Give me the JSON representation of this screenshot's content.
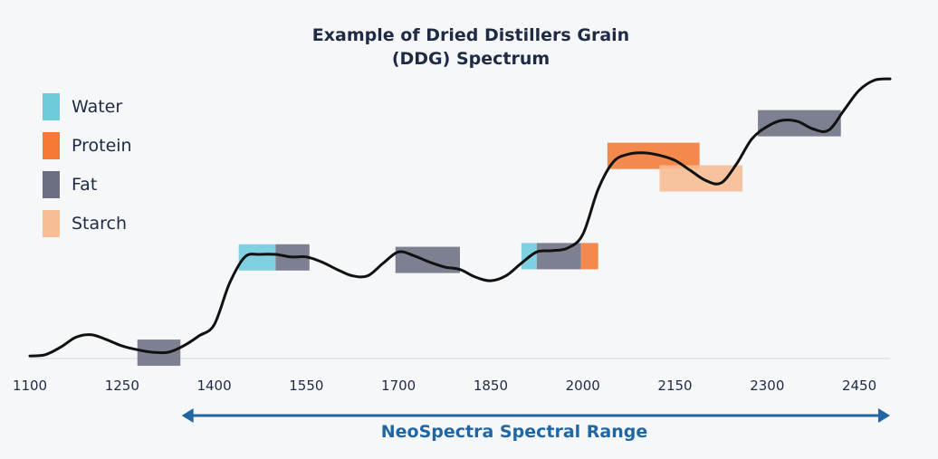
{
  "chart_data": {
    "type": "line",
    "title": "Example of Dried Distillers Grain",
    "subtitle": "(DDG) Spectrum",
    "xlabel": "",
    "ylabel": "",
    "xlim": [
      1100,
      2500
    ],
    "x_ticks": [
      "1100",
      "1250",
      "1400",
      "1550",
      "1700",
      "1850",
      "2000",
      "2150",
      "2300",
      "2450"
    ],
    "legend": [
      {
        "name": "Water",
        "color": "#6ecbdc"
      },
      {
        "name": "Protein",
        "color": "#f47a35"
      },
      {
        "name": "Fat",
        "color": "#6c6f82"
      },
      {
        "name": "Starch",
        "color": "#f7bd95"
      }
    ],
    "series": [
      {
        "name": "DDG spectrum",
        "x": [
          1100,
          1125,
          1150,
          1175,
          1200,
          1225,
          1250,
          1275,
          1300,
          1325,
          1350,
          1375,
          1400,
          1425,
          1450,
          1475,
          1500,
          1525,
          1550,
          1575,
          1600,
          1625,
          1650,
          1675,
          1700,
          1725,
          1750,
          1775,
          1800,
          1825,
          1850,
          1875,
          1900,
          1925,
          1950,
          1975,
          2000,
          2025,
          2050,
          2075,
          2100,
          2125,
          2150,
          2175,
          2200,
          2225,
          2250,
          2275,
          2300,
          2325,
          2350,
          2375,
          2400,
          2425,
          2450,
          2475,
          2500
        ],
        "y": [
          0.02,
          0.03,
          0.09,
          0.17,
          0.19,
          0.15,
          0.1,
          0.07,
          0.05,
          0.05,
          0.1,
          0.18,
          0.27,
          0.6,
          0.81,
          0.83,
          0.83,
          0.81,
          0.81,
          0.77,
          0.71,
          0.66,
          0.66,
          0.76,
          0.85,
          0.82,
          0.77,
          0.73,
          0.71,
          0.65,
          0.62,
          0.66,
          0.76,
          0.85,
          0.86,
          0.88,
          0.99,
          1.35,
          1.57,
          1.63,
          1.64,
          1.62,
          1.58,
          1.5,
          1.42,
          1.4,
          1.55,
          1.75,
          1.85,
          1.9,
          1.89,
          1.83,
          1.82,
          1.98,
          2.14,
          2.22,
          2.23
        ]
      }
    ],
    "bands": [
      {
        "component": "Fat",
        "x0": 1275,
        "x1": 1345,
        "y": 0.05
      },
      {
        "component": "Water",
        "x0": 1440,
        "x1": 1500,
        "y": 0.81
      },
      {
        "component": "Fat",
        "x0": 1500,
        "x1": 1555,
        "y": 0.81
      },
      {
        "component": "Fat",
        "x0": 1695,
        "x1": 1800,
        "y": 0.79
      },
      {
        "component": "Water",
        "x0": 1900,
        "x1": 1925,
        "y": 0.82
      },
      {
        "component": "Fat",
        "x0": 1925,
        "x1": 1997,
        "y": 0.82
      },
      {
        "component": "Protein",
        "x0": 1997,
        "x1": 2025,
        "y": 0.82
      },
      {
        "component": "Protein",
        "x0": 2040,
        "x1": 2190,
        "y": 1.62
      },
      {
        "component": "Starch",
        "x0": 2125,
        "x1": 2260,
        "y": 1.44
      },
      {
        "component": "Fat",
        "x0": 2285,
        "x1": 2420,
        "y": 1.88
      }
    ],
    "range_arrow": {
      "label": "NeoSpectra Spectral Range",
      "x0": 1350,
      "x1": 2500
    }
  }
}
